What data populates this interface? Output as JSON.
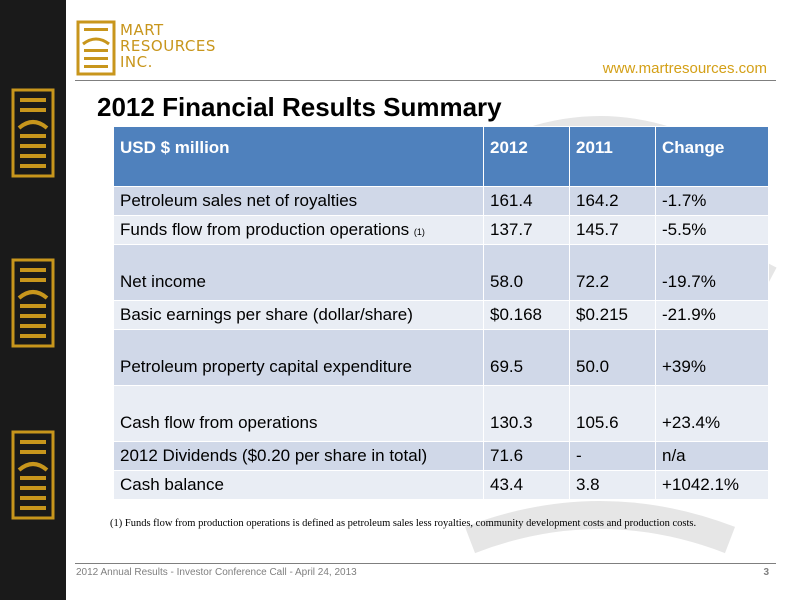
{
  "brand": {
    "line1": "MART",
    "line2": "RESOURCES",
    "line3": "INC.",
    "color": "#c8961c"
  },
  "url": "www.martresources.com",
  "title": "2012 Financial Results Summary",
  "table": {
    "headers": [
      "USD $ million",
      "2012",
      "2011",
      "Change"
    ],
    "header_color": "#4f81bd",
    "rows": [
      {
        "label": "Petroleum sales net of royalties",
        "note": "",
        "v2012": "161.4",
        "v2011": "164.2",
        "change": "-1.7%"
      },
      {
        "label": "Funds flow from production operations",
        "note": "(1)",
        "v2012": "137.7",
        "v2011": "145.7",
        "change": "-5.5%"
      },
      {
        "label": "Net income",
        "note": "",
        "v2012": "58.0",
        "v2011": "72.2",
        "change": "-19.7%"
      },
      {
        "label": "Basic earnings per share (dollar/share)",
        "note": "",
        "v2012": "$0.168",
        "v2011": "$0.215",
        "change": "-21.9%"
      },
      {
        "label": "Petroleum property capital expenditure",
        "note": "",
        "v2012": "69.5",
        "v2011": "50.0",
        "change": "+39%"
      },
      {
        "label": "Cash flow from operations",
        "note": "",
        "v2012": "130.3",
        "v2011": "105.6",
        "change": "+23.4%"
      },
      {
        "label": "2012 Dividends ($0.20 per share in total)",
        "note": "",
        "v2012": "71.6",
        "v2011": "-",
        "change": "n/a"
      },
      {
        "label": "Cash balance",
        "note": "",
        "v2012": "43.4",
        "v2011": "3.8",
        "change": "+1042.1%"
      }
    ]
  },
  "footnote": "(1)  Funds flow from production operations  is defined as petroleum sales less royalties, community development costs and production costs.",
  "footer": "2012 Annual Results - Investor Conference Call - April 24, 2013",
  "page_number": "3"
}
